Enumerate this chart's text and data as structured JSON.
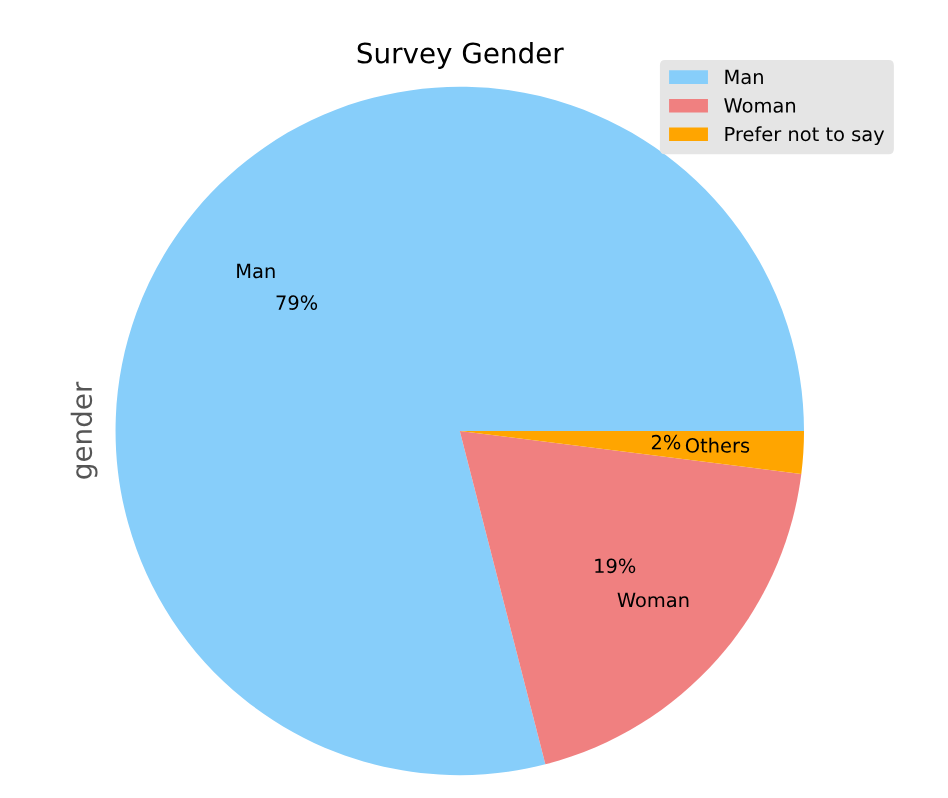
{
  "chart_data": {
    "type": "pie",
    "title": "Survey Gender",
    "ylabel": "gender",
    "categories": [
      "Man",
      "Woman",
      "Prefer not to say"
    ],
    "values": [
      79,
      19,
      2
    ],
    "value_labels": [
      "79%",
      "19%",
      "2%"
    ],
    "colors": [
      "#87cefa",
      "#f08080",
      "#ffa500"
    ],
    "annotations": [
      {
        "text": "Others",
        "x": "Prefer not to say"
      }
    ],
    "legend": "top right"
  }
}
